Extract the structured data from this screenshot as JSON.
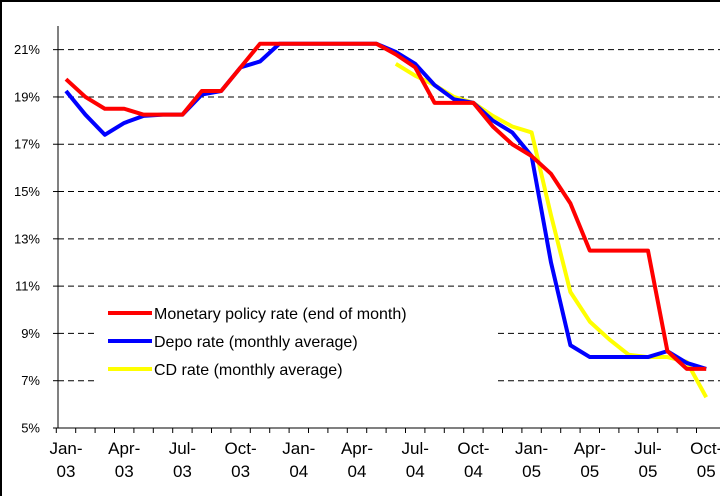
{
  "chart_data": {
    "type": "line",
    "categories": [
      "Jan-03",
      null,
      null,
      "Apr-03",
      null,
      null,
      "Jul-03",
      null,
      null,
      "Oct-03",
      null,
      null,
      "Jan-04",
      null,
      null,
      "Apr-04",
      null,
      null,
      "Jul-04",
      null,
      null,
      "Oct-04",
      null,
      null,
      "Jan-05",
      null,
      null,
      "Apr-05",
      null,
      null,
      "Jul-05",
      null,
      null,
      "Oct-05"
    ],
    "series": [
      {
        "name": "Monetary policy rate (end of month)",
        "color": "#ff0000",
        "values": [
          19.75,
          19.0,
          18.5,
          18.5,
          18.25,
          18.25,
          18.25,
          19.25,
          19.25,
          20.25,
          21.25,
          21.25,
          21.25,
          21.25,
          21.25,
          21.25,
          21.25,
          20.8,
          20.25,
          18.75,
          18.75,
          18.75,
          17.75,
          17.0,
          16.5,
          15.75,
          14.5,
          12.5,
          12.5,
          12.5,
          12.5,
          8.25,
          7.5,
          7.5
        ]
      },
      {
        "name": "Depo rate (monthly average)",
        "color": "#0000ff",
        "values": [
          19.25,
          18.25,
          17.4,
          17.9,
          18.2,
          18.25,
          18.25,
          19.1,
          19.25,
          20.25,
          20.5,
          21.25,
          21.25,
          21.25,
          21.25,
          21.25,
          21.25,
          20.9,
          20.4,
          19.5,
          18.9,
          18.75,
          18.0,
          17.5,
          16.5,
          12.0,
          8.5,
          8.0,
          8.0,
          8.0,
          8.0,
          8.25,
          7.75,
          7.5
        ]
      },
      {
        "name": "CD rate (monthly average)",
        "color": "#ffff00",
        "values": [
          null,
          null,
          null,
          null,
          null,
          null,
          null,
          null,
          null,
          null,
          null,
          null,
          null,
          null,
          null,
          null,
          null,
          20.4,
          19.9,
          19.5,
          19.0,
          18.75,
          18.2,
          17.75,
          17.5,
          14.0,
          10.75,
          9.5,
          8.75,
          8.1,
          8.0,
          8.0,
          7.8,
          6.3
        ]
      }
    ],
    "ylim": [
      5,
      22
    ],
    "yticks": [
      {
        "value": 5,
        "label": "5%"
      },
      {
        "value": 7,
        "label": "7%"
      },
      {
        "value": 9,
        "label": "9%"
      },
      {
        "value": 11,
        "label": "11%"
      },
      {
        "value": 13,
        "label": "13%"
      },
      {
        "value": 15,
        "label": "15%"
      },
      {
        "value": 17,
        "label": "17%"
      },
      {
        "value": 19,
        "label": "19%"
      },
      {
        "value": 21,
        "label": "21%"
      }
    ],
    "grid": true
  }
}
